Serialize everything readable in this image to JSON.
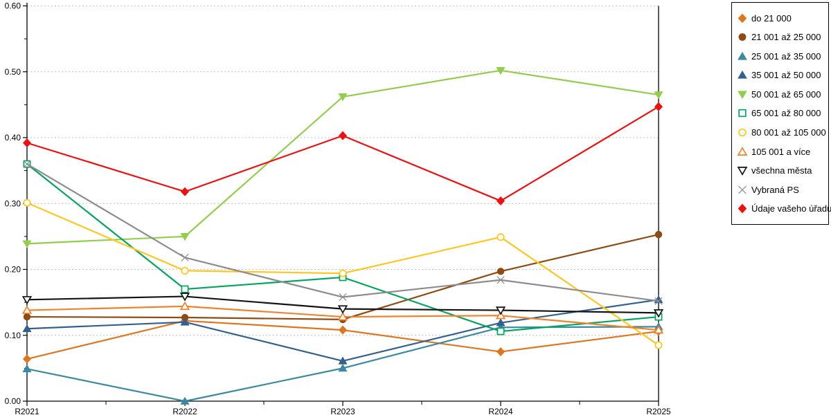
{
  "chart_data": {
    "type": "line",
    "x": [
      "R2021",
      "R2022",
      "R2023",
      "R2024",
      "R2025"
    ],
    "ylim": [
      0,
      0.6
    ],
    "ytick_step": 0.1,
    "ytick_labels": [
      "0.00",
      "0.10",
      "0.20",
      "0.30",
      "0.40",
      "0.50",
      "0.60"
    ],
    "grid": "horizontal-dashed",
    "gridline_color": "#bfbfbf",
    "legend_position": "right",
    "series": [
      {
        "name": "do 21 000",
        "color": "#E0751E",
        "marker": "diamond",
        "fill": "solid",
        "values": [
          0.064,
          0.122,
          0.108,
          0.075,
          0.106
        ]
      },
      {
        "name": "21 001 až 25 000",
        "color": "#8F4B12",
        "marker": "circle",
        "fill": "solid",
        "values": [
          0.128,
          0.127,
          0.124,
          0.197,
          0.253
        ]
      },
      {
        "name": "25 001 až 35 000",
        "color": "#3A89A3",
        "marker": "triangle-up",
        "fill": "solid",
        "values": [
          0.049,
          0.0,
          0.05,
          0.112,
          0.113
        ]
      },
      {
        "name": "35 001 až 50 000",
        "color": "#33608F",
        "marker": "triangle-up",
        "fill": "solid",
        "values": [
          0.11,
          0.12,
          0.061,
          0.119,
          0.154
        ]
      },
      {
        "name": "50 001 až 65 000",
        "color": "#92CE4A",
        "marker": "triangle-down",
        "fill": "solid",
        "values": [
          0.239,
          0.25,
          0.462,
          0.502,
          0.465
        ]
      },
      {
        "name": "65 001 až 80 000",
        "color": "#00A65D",
        "marker": "square",
        "fill": "open",
        "values": [
          0.36,
          0.17,
          0.188,
          0.106,
          0.128
        ]
      },
      {
        "name": "80 001 až 105 000",
        "color": "#FFC61E",
        "marker": "circle",
        "fill": "open",
        "values": [
          0.301,
          0.198,
          0.194,
          0.249,
          0.085
        ]
      },
      {
        "name": "105 001 a více",
        "color": "#F0832A",
        "marker": "triangle-up",
        "fill": "open",
        "values": [
          0.138,
          0.144,
          0.128,
          0.13,
          0.108
        ]
      },
      {
        "name": "všechna města",
        "color": "#141414",
        "marker": "triangle-down",
        "fill": "open",
        "values": [
          0.154,
          0.159,
          0.14,
          0.138,
          0.134
        ]
      },
      {
        "name": "Vybraná PS",
        "color": "#8C8C8C",
        "marker": "x",
        "fill": "open",
        "values": [
          0.36,
          0.218,
          0.158,
          0.184,
          0.152
        ]
      },
      {
        "name": "Údaje vašeho úřadu",
        "color": "#F10E0E",
        "marker": "diamond",
        "fill": "solid",
        "values": [
          0.392,
          0.318,
          0.403,
          0.304,
          0.447
        ]
      }
    ]
  }
}
